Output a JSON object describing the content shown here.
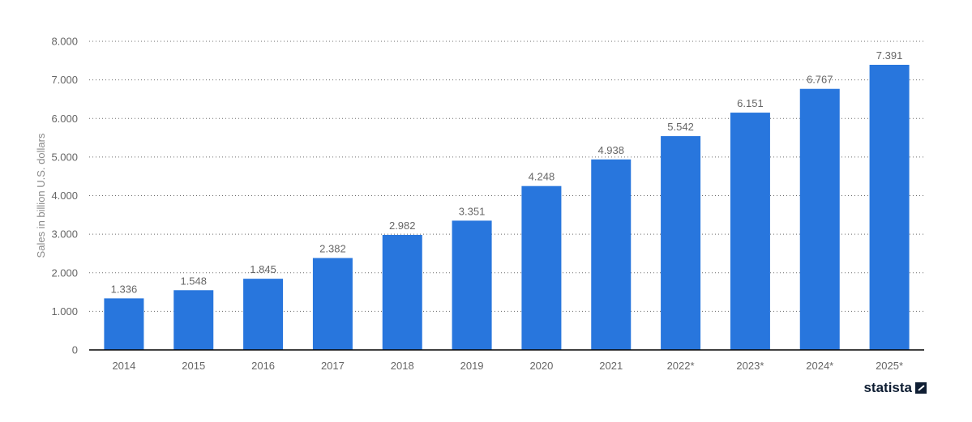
{
  "chart_data": {
    "type": "bar",
    "categories": [
      "2014",
      "2015",
      "2016",
      "2017",
      "2018",
      "2019",
      "2020",
      "2021",
      "2022*",
      "2023*",
      "2024*",
      "2025*"
    ],
    "values": [
      1336,
      1548,
      1845,
      2382,
      2982,
      3351,
      4248,
      4938,
      5542,
      6151,
      6767,
      7391
    ],
    "value_labels": [
      "1.336",
      "1.548",
      "1.845",
      "2.382",
      "2.982",
      "3.351",
      "4.248",
      "4.938",
      "5.542",
      "6.151",
      "6.767",
      "7.391"
    ],
    "ylabel": "Sales in billion U.S. dollars",
    "xlabel": "",
    "ylim": [
      0,
      8000
    ],
    "yticks": [
      0,
      1000,
      2000,
      3000,
      4000,
      5000,
      6000,
      7000,
      8000
    ],
    "ytick_labels": [
      "0",
      "1.000",
      "2.000",
      "3.000",
      "4.000",
      "5.000",
      "6.000",
      "7.000",
      "8.000"
    ],
    "grid": true,
    "bar_color": "#2876dd"
  },
  "branding": {
    "logo_text": "statista"
  }
}
